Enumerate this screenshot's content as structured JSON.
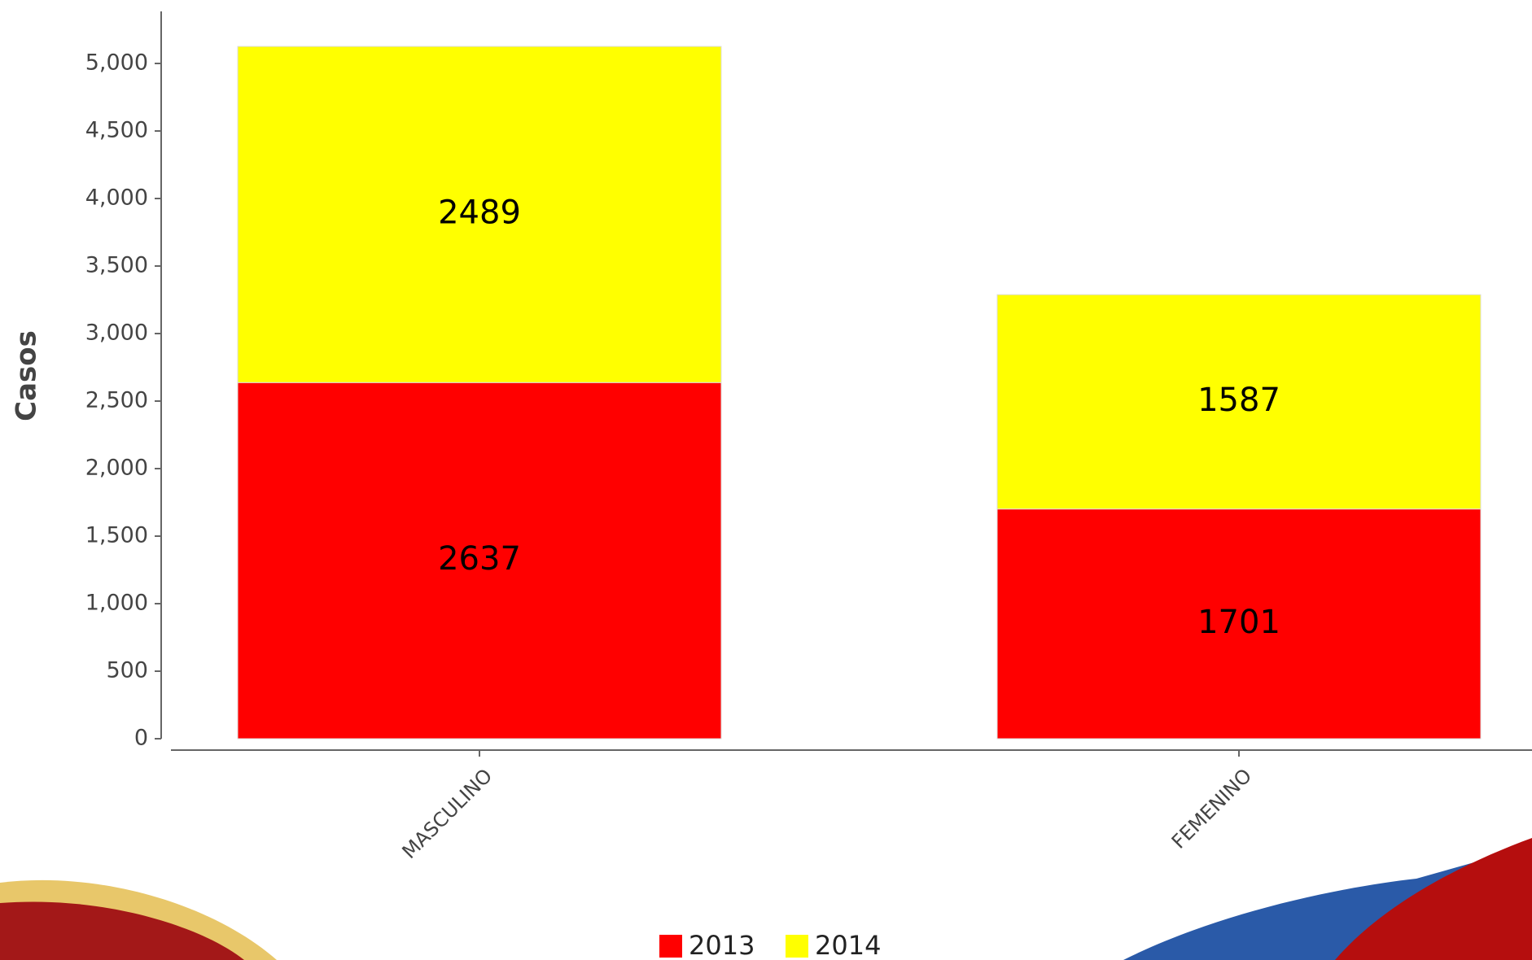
{
  "chart_data": {
    "type": "stacked_bar",
    "y_label": "Casos",
    "categories": [
      "MASCULINO",
      "FEMENINO"
    ],
    "series": [
      {
        "name": "2013",
        "color": "#ff0000",
        "values": [
          2637,
          1701
        ]
      },
      {
        "name": "2014",
        "color": "#ffff00",
        "values": [
          2489,
          1587
        ]
      }
    ],
    "ylim": [
      0,
      5400
    ],
    "yticks": [
      0,
      500,
      {
        "value": 1000,
        "label": "1,000"
      },
      {
        "value": 1500,
        "label": "1,500"
      },
      {
        "value": 2000,
        "label": "2,000"
      },
      {
        "value": 2500,
        "label": "2,500"
      },
      {
        "value": 3000,
        "label": "3,000"
      },
      {
        "value": 3500,
        "label": "3,500"
      },
      {
        "value": 4000,
        "label": "4,000"
      },
      {
        "value": 4500,
        "label": "4,500"
      },
      {
        "value": 5000,
        "label": "5,000"
      }
    ],
    "grid": false,
    "legend": "bottom"
  }
}
